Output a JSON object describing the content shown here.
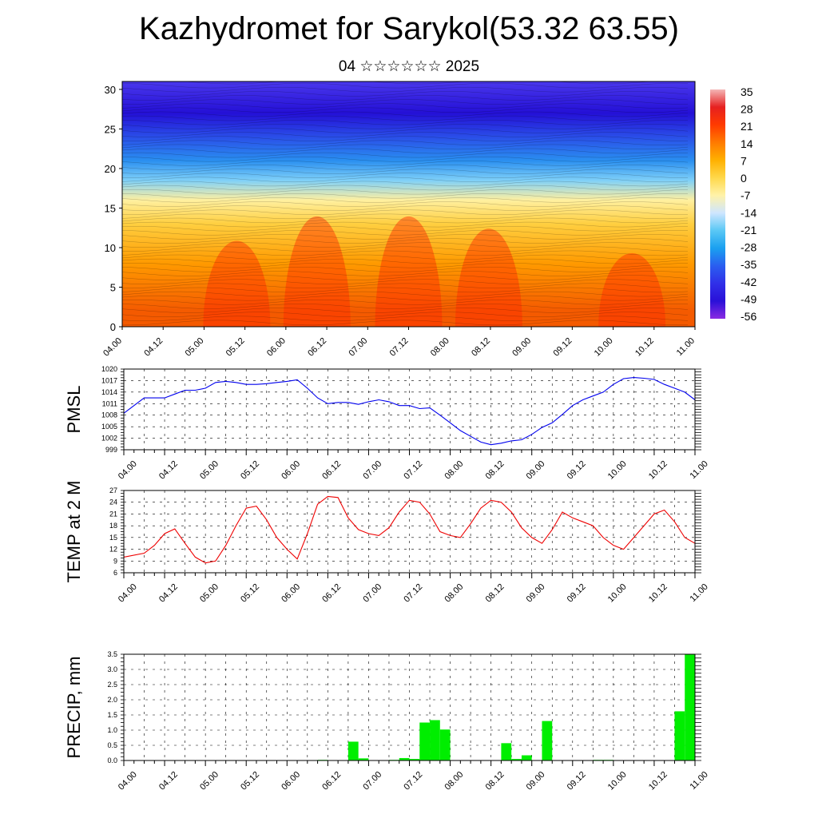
{
  "page": {
    "title": "Kazhydromet for Sarykol(53.32 63.55)",
    "subtitle": "04 ☆☆☆☆☆☆ 2025"
  },
  "chart_data": [
    {
      "type": "heatmap",
      "title": "",
      "xlabel": "",
      "ylabel": "",
      "x_ticks": [
        "04.00",
        "04.12",
        "05.00",
        "05.12",
        "06.00",
        "06.12",
        "07.00",
        "07.12",
        "08.00",
        "08.12",
        "09.00",
        "09.12",
        "10.00",
        "10.12",
        "11.00"
      ],
      "y_ticks": [
        0,
        5,
        10,
        15,
        20,
        25,
        30
      ],
      "ylim": [
        0,
        31
      ],
      "colorbar_labels": [
        "35",
        "28",
        "21",
        "14",
        "7",
        "0",
        "-7",
        "-14",
        "-21",
        "-28",
        "-35",
        "-42",
        "-49",
        "-56"
      ],
      "colorbar_colors": [
        "#f4b6b6",
        "#e62020",
        "#ff3a00",
        "#ff7a00",
        "#ffb000",
        "#ffd84a",
        "#fff2a8",
        "#cfe6ff",
        "#5ac8f5",
        "#1aa0f0",
        "#2a5ef0",
        "#3030e8",
        "#2a10d8",
        "#8a2be2"
      ],
      "layers": [
        {
          "height_km": 2,
          "color": "#f45a00"
        },
        {
          "height_km": 8,
          "color": "#ff9a00"
        },
        {
          "height_km": 13,
          "color": "#ffcf40"
        },
        {
          "height_km": 16,
          "color": "#fff0a0"
        },
        {
          "height_km": 18.5,
          "color": "#7fd0f8"
        },
        {
          "height_km": 21,
          "color": "#2a8ff0"
        },
        {
          "height_km": 24,
          "color": "#2a4ee8"
        },
        {
          "height_km": 27,
          "color": "#2410d6"
        },
        {
          "height_km": 31,
          "color": "#4a38ec"
        }
      ]
    },
    {
      "type": "line",
      "title": "",
      "xlabel": "",
      "ylabel": "PMSL",
      "x_ticks": [
        "04.00",
        "04.12",
        "05.00",
        "05.12",
        "06.00",
        "06.12",
        "07.00",
        "07.12",
        "08.00",
        "08.12",
        "09.00",
        "09.12",
        "10.00",
        "10.12",
        "11.00"
      ],
      "y_ticks": [
        999,
        1002,
        1005,
        1008,
        1011,
        1014,
        1017,
        1020
      ],
      "ylim": [
        999,
        1020
      ],
      "x_hours": [
        0,
        6,
        9,
        12,
        15,
        18,
        21,
        24,
        27,
        30,
        33,
        36,
        39,
        42,
        45,
        48,
        51,
        54,
        57,
        60,
        63,
        66,
        69,
        72,
        75,
        78,
        81,
        84,
        87,
        90,
        93,
        96,
        99,
        102,
        105,
        108,
        111,
        114,
        117,
        120,
        123,
        126,
        129,
        132,
        135,
        138,
        141,
        144,
        147,
        150,
        153,
        156,
        159,
        162,
        165,
        168
      ],
      "values": [
        1008.5,
        1012.5,
        1012.5,
        1012.5,
        1013.5,
        1014.5,
        1014.5,
        1015,
        1016.5,
        1016.8,
        1016.5,
        1016,
        1016,
        1016.2,
        1016.5,
        1016.8,
        1017.2,
        1015,
        1012.5,
        1011,
        1011.3,
        1011.3,
        1010.8,
        1011.5,
        1012,
        1011.5,
        1010.5,
        1010.5,
        1009.7,
        1009.9,
        1008,
        1006,
        1004,
        1002.5,
        1001,
        1000.3,
        1000.7,
        1001.3,
        1001.6,
        1003,
        1004.8,
        1006,
        1008.2,
        1010.5,
        1012,
        1013,
        1014,
        1016,
        1017.5,
        1017.8,
        1017.6,
        1017.3,
        1016,
        1015,
        1014,
        1012
      ]
    },
    {
      "type": "line",
      "title": "",
      "xlabel": "",
      "ylabel": "TEMP at 2 M",
      "x_ticks": [
        "04.00",
        "04.12",
        "05.00",
        "05.12",
        "06.00",
        "06.12",
        "07.00",
        "07.12",
        "08.00",
        "08.12",
        "09.00",
        "09.12",
        "10.00",
        "10.12",
        "11.00"
      ],
      "y_ticks": [
        6,
        9,
        12,
        15,
        18,
        21,
        24,
        27
      ],
      "ylim": [
        6,
        27
      ],
      "x_hours": [
        0,
        6,
        9,
        12,
        15,
        18,
        21,
        24,
        27,
        30,
        33,
        36,
        39,
        42,
        45,
        48,
        51,
        54,
        57,
        60,
        63,
        66,
        69,
        72,
        75,
        78,
        81,
        84,
        87,
        90,
        93,
        96,
        99,
        102,
        105,
        108,
        111,
        114,
        117,
        120,
        123,
        126,
        129,
        132,
        135,
        138,
        141,
        144,
        147,
        150,
        153,
        156,
        159,
        162,
        165,
        168
      ],
      "values": [
        10,
        11,
        13,
        16,
        17.2,
        13.5,
        10,
        8.5,
        9,
        13,
        18,
        22.5,
        23,
        19.5,
        15,
        12,
        9.5,
        16,
        23.5,
        25.5,
        25.2,
        20,
        17,
        16,
        15.5,
        17.5,
        21.5,
        24.5,
        24,
        21,
        16.5,
        15.5,
        15,
        18.5,
        22.5,
        24.5,
        24,
        21.5,
        17.5,
        15,
        13.5,
        17,
        21.5,
        20,
        19,
        18,
        15,
        13,
        12,
        15,
        18,
        21,
        22,
        19,
        15,
        13.5
      ]
    },
    {
      "type": "bar",
      "title": "",
      "xlabel": "",
      "ylabel": "PRECIP, mm",
      "x_ticks": [
        "04.00",
        "04.12",
        "05.00",
        "05.12",
        "06.00",
        "06.12",
        "07.00",
        "07.12",
        "08.00",
        "08.12",
        "09.00",
        "09.12",
        "10.00",
        "10.12",
        "11.00"
      ],
      "y_ticks": [
        "0.0",
        "0.5",
        "1.0",
        "1.5",
        "2.0",
        "2.5",
        "3.0",
        "3.5"
      ],
      "ylim": [
        0,
        3.5
      ],
      "bar_width_hours": 3,
      "bars": [
        {
          "hour": 60,
          "value": 0.02
        },
        {
          "hour": 69,
          "value": 0.62
        },
        {
          "hour": 72,
          "value": 0.07
        },
        {
          "hour": 81,
          "value": 0.02
        },
        {
          "hour": 84,
          "value": 0.08
        },
        {
          "hour": 87,
          "value": 0.05
        },
        {
          "hour": 90,
          "value": 1.25
        },
        {
          "hour": 93,
          "value": 1.33
        },
        {
          "hour": 96,
          "value": 1.02
        },
        {
          "hour": 114,
          "value": 0.57
        },
        {
          "hour": 117,
          "value": 0.05
        },
        {
          "hour": 120,
          "value": 0.17
        },
        {
          "hour": 126,
          "value": 1.3
        },
        {
          "hour": 141,
          "value": 0.02
        },
        {
          "hour": 144,
          "value": 0.02
        },
        {
          "hour": 165,
          "value": 1.62
        },
        {
          "hour": 168,
          "value": 3.5
        }
      ]
    }
  ]
}
